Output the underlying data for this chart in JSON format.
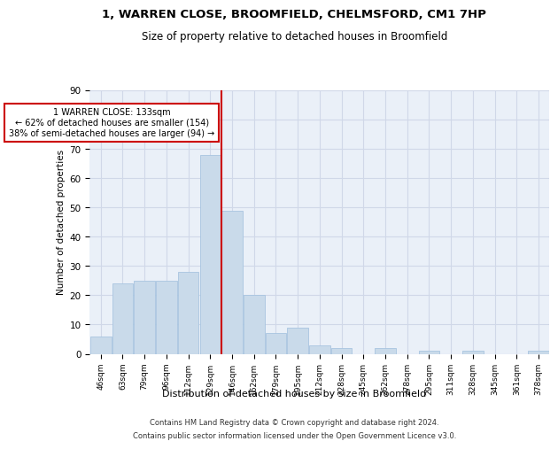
{
  "title": "1, WARREN CLOSE, BROOMFIELD, CHELMSFORD, CM1 7HP",
  "subtitle": "Size of property relative to detached houses in Broomfield",
  "xlabel": "Distribution of detached houses by size in Broomfield",
  "ylabel": "Number of detached properties",
  "bar_labels": [
    "46sqm",
    "63sqm",
    "79sqm",
    "96sqm",
    "112sqm",
    "129sqm",
    "146sqm",
    "162sqm",
    "179sqm",
    "195sqm",
    "212sqm",
    "228sqm",
    "245sqm",
    "262sqm",
    "278sqm",
    "295sqm",
    "311sqm",
    "328sqm",
    "345sqm",
    "361sqm",
    "378sqm"
  ],
  "bar_values": [
    6,
    24,
    25,
    25,
    28,
    68,
    49,
    20,
    7,
    9,
    3,
    2,
    0,
    2,
    0,
    1,
    0,
    1,
    0,
    0,
    1
  ],
  "bar_color": "#c9daea",
  "bar_edge_color": "#a8c4e0",
  "property_line_x": 5.5,
  "property_line_label": "1 WARREN CLOSE: 133sqm",
  "annotation_line1": "← 62% of detached houses are smaller (154)",
  "annotation_line2": "38% of semi-detached houses are larger (94) →",
  "annotation_box_color": "#ffffff",
  "annotation_box_edge_color": "#cc0000",
  "vline_color": "#cc0000",
  "ylim": [
    0,
    90
  ],
  "yticks": [
    0,
    10,
    20,
    30,
    40,
    50,
    60,
    70,
    80,
    90
  ],
  "grid_color": "#d0d8e8",
  "background_color": "#eaf0f8",
  "footer_line1": "Contains HM Land Registry data © Crown copyright and database right 2024.",
  "footer_line2": "Contains public sector information licensed under the Open Government Licence v3.0."
}
